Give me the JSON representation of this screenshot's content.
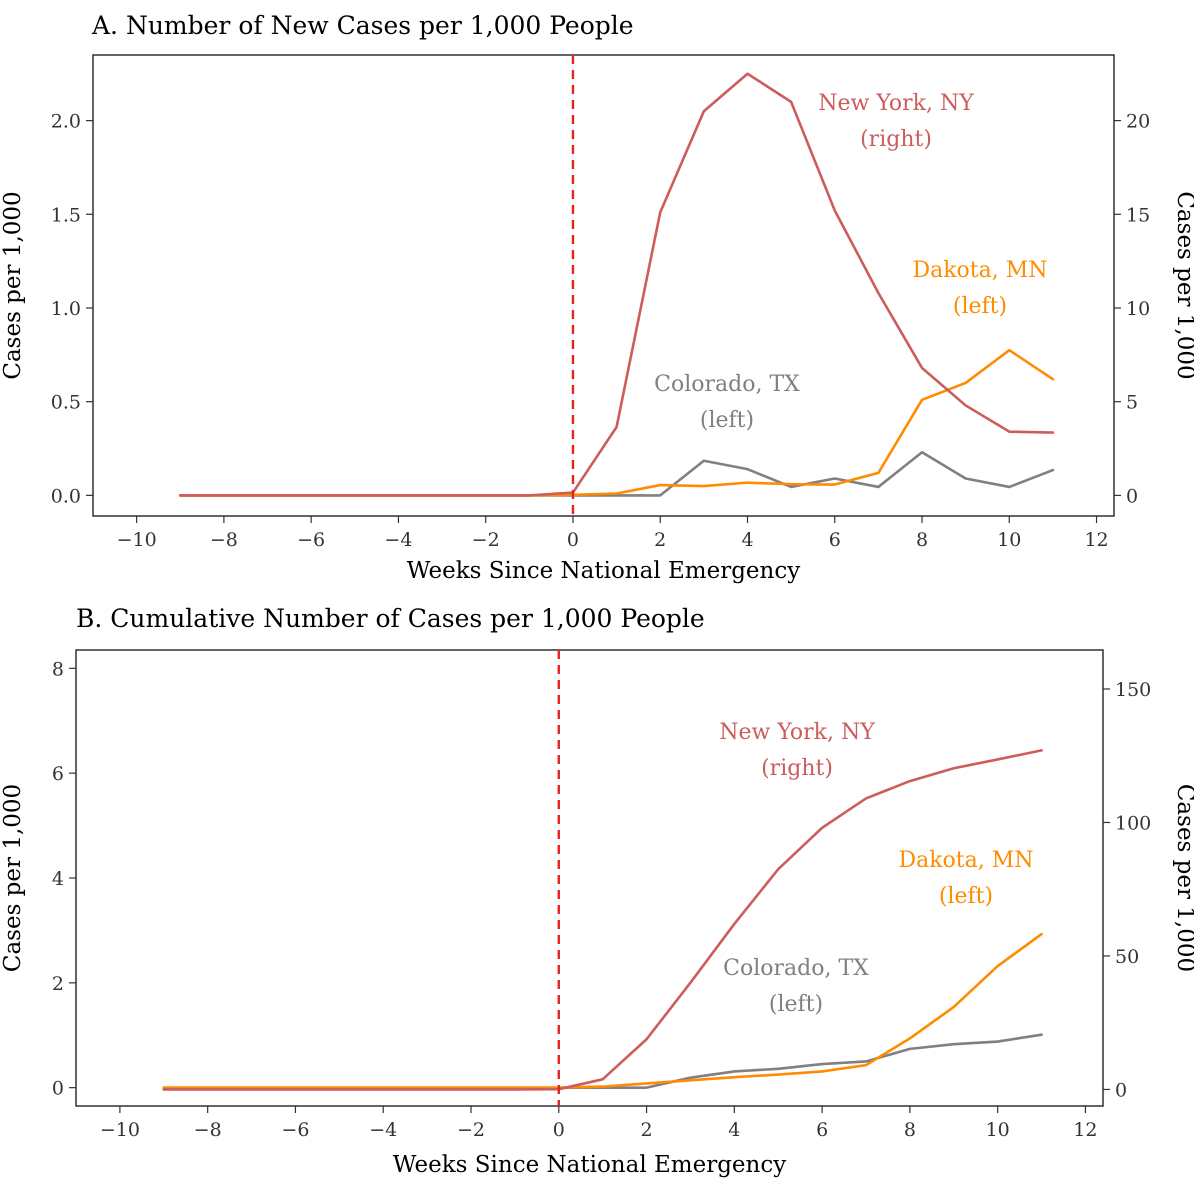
{
  "chart_data": [
    {
      "type": "line",
      "title": "A. Number of New Cases per 1,000 People",
      "xlabel": "Weeks Since National Emergency",
      "ylabel": "Cases per 1,000",
      "ylabel_right": "Cases per 1,000",
      "xlim": [
        -11,
        12.4
      ],
      "xticks": [
        -10,
        -8,
        -6,
        -4,
        -2,
        0,
        2,
        4,
        6,
        8,
        10,
        12
      ],
      "xtick_labels": [
        "−10",
        "−8",
        "−6",
        "−4",
        "−2",
        "0",
        "2",
        "4",
        "6",
        "8",
        "10",
        "12"
      ],
      "ylim_left": [
        -0.11,
        2.35
      ],
      "yticks_left": [
        0,
        0.5,
        1,
        1.5,
        2
      ],
      "ytick_labels_left": [
        "0.0",
        "0.5",
        "1.0",
        "1.5",
        "2.0"
      ],
      "ylim_right": [
        -1.1,
        23.5
      ],
      "yticks_right": [
        0,
        5,
        10,
        15,
        20
      ],
      "ytick_labels_right": [
        "0",
        "5",
        "10",
        "15",
        "20"
      ],
      "reference_line": {
        "x": 0,
        "color": "#e8231f",
        "style": "dashed"
      },
      "x": [
        -9,
        -8,
        -7,
        -6,
        -5,
        -4,
        -3,
        -2,
        -1,
        0,
        1,
        2,
        3,
        4,
        5,
        6,
        7,
        8,
        9,
        10,
        11
      ],
      "series": [
        {
          "name": "New York, NY",
          "axis": "right",
          "color": "#cd5c5c",
          "label_lines": [
            "New York, NY",
            "(right)"
          ],
          "values": [
            0,
            0,
            0,
            0,
            0,
            0,
            0,
            0,
            0,
            0.15,
            3.65,
            15.1,
            20.5,
            22.5,
            21.0,
            15.2,
            10.8,
            6.8,
            4.8,
            3.4,
            3.35
          ]
        },
        {
          "name": "Dakota, MN",
          "axis": "left",
          "color": "#ff8c00",
          "label_lines": [
            "Dakota, MN",
            "(left)"
          ],
          "values": [
            0,
            0,
            0,
            0,
            0,
            0,
            0,
            0,
            0,
            0.003,
            0.01,
            0.055,
            0.05,
            0.068,
            0.06,
            0.058,
            0.12,
            0.51,
            0.6,
            0.775,
            0.62
          ]
        },
        {
          "name": "Colorado, TX",
          "axis": "left",
          "color": "#808080",
          "label_lines": [
            "Colorado, TX",
            "(left)"
          ],
          "values": [
            0,
            0,
            0,
            0,
            0,
            0,
            0,
            0,
            0,
            0,
            0,
            0,
            0.185,
            0.14,
            0.045,
            0.09,
            0.045,
            0.23,
            0.09,
            0.045,
            0.135
          ]
        }
      ]
    },
    {
      "type": "line",
      "title": "B. Cumulative Number of Cases per 1,000 People",
      "xlabel": "Weeks Since National Emergency",
      "ylabel": "Cases per 1,000",
      "ylabel_right": "Cases per 1,000",
      "xlim": [
        -11,
        12.4
      ],
      "xticks": [
        -10,
        -8,
        -6,
        -4,
        -2,
        0,
        2,
        4,
        6,
        8,
        10,
        12
      ],
      "xtick_labels": [
        "−10",
        "−8",
        "−6",
        "−4",
        "−2",
        "0",
        "2",
        "4",
        "6",
        "8",
        "10",
        "12"
      ],
      "ylim_left": [
        -0.35,
        8.35
      ],
      "yticks_left": [
        0,
        2,
        4,
        6,
        8
      ],
      "ytick_labels_left": [
        "0",
        "2",
        "4",
        "6",
        "8"
      ],
      "ylim_right": [
        -6.2,
        164.6
      ],
      "yticks_right": [
        0,
        50,
        100,
        150
      ],
      "ytick_labels_right": [
        "0",
        "50",
        "100",
        "150"
      ],
      "reference_line": {
        "x": 0,
        "color": "#e8231f",
        "style": "dashed"
      },
      "x": [
        -9,
        -8,
        -7,
        -6,
        -5,
        -4,
        -3,
        -2,
        -1,
        0,
        1,
        2,
        3,
        4,
        5,
        6,
        7,
        8,
        9,
        10,
        11
      ],
      "series": [
        {
          "name": "New York, NY",
          "axis": "right",
          "color": "#cd5c5c",
          "label_lines": [
            "New York, NY",
            "(right)"
          ],
          "values": [
            0,
            0,
            0,
            0,
            0,
            0,
            0,
            0,
            0,
            0.1,
            3.8,
            18.8,
            40.0,
            62.0,
            82.5,
            98.0,
            109.0,
            115.5,
            120.3,
            123.6,
            127.0
          ]
        },
        {
          "name": "Dakota, MN",
          "axis": "left",
          "color": "#ff8c00",
          "label_lines": [
            "Dakota, MN",
            "(left)"
          ],
          "values": [
            0,
            0,
            0,
            0,
            0,
            0,
            0,
            0,
            0,
            0,
            0.02,
            0.08,
            0.14,
            0.2,
            0.25,
            0.31,
            0.43,
            0.94,
            1.54,
            2.32,
            2.93
          ]
        },
        {
          "name": "Colorado, TX",
          "axis": "left",
          "color": "#808080",
          "label_lines": [
            "Colorado, TX",
            "(left)"
          ],
          "values": [
            0,
            0,
            0,
            0,
            0,
            0,
            0,
            0,
            0,
            0,
            0,
            0,
            0.19,
            0.31,
            0.36,
            0.45,
            0.5,
            0.74,
            0.83,
            0.88,
            1.01
          ]
        }
      ]
    }
  ]
}
